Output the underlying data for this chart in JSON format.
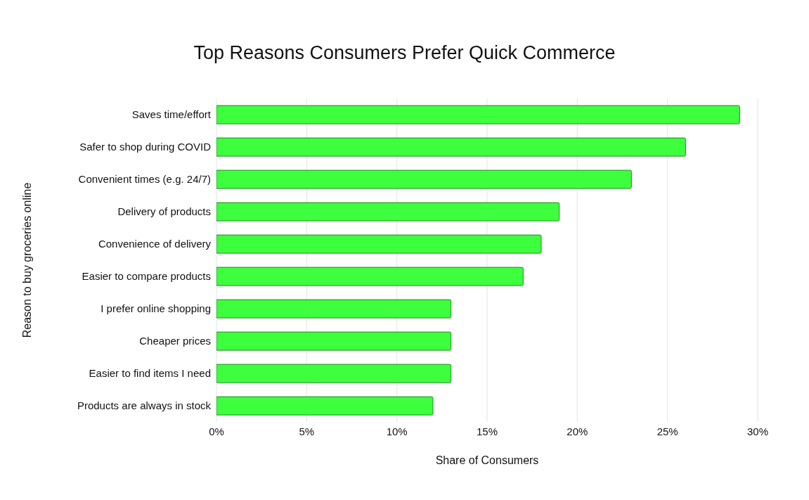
{
  "chart_data": {
    "type": "bar",
    "orientation": "horizontal",
    "title": "Top Reasons Consumers Prefer Quick Commerce",
    "xlabel": "Share of Consumers",
    "ylabel": "Reason to buy groceries online",
    "categories": [
      "Saves time/effort",
      "Safer to shop during COVID",
      "Convenient times (e.g. 24/7)",
      "Delivery of products",
      "Convenience of delivery",
      "Easier to compare products",
      "I prefer online shopping",
      "Cheaper prices",
      "Easier to find items I need",
      "Products are always in stock"
    ],
    "values": [
      29,
      26,
      23,
      19,
      18,
      17,
      13,
      13,
      13,
      12
    ],
    "color": "#3dff3d",
    "xlim": [
      0,
      30
    ],
    "xticks": [
      {
        "value": 0,
        "label": "0%"
      },
      {
        "value": 5,
        "label": "5%"
      },
      {
        "value": 10,
        "label": "10%"
      },
      {
        "value": 15,
        "label": "15%"
      },
      {
        "value": 20,
        "label": "20%"
      },
      {
        "value": 25,
        "label": "25%"
      },
      {
        "value": 30,
        "label": "30%"
      }
    ],
    "grid": "x",
    "legend": false
  }
}
